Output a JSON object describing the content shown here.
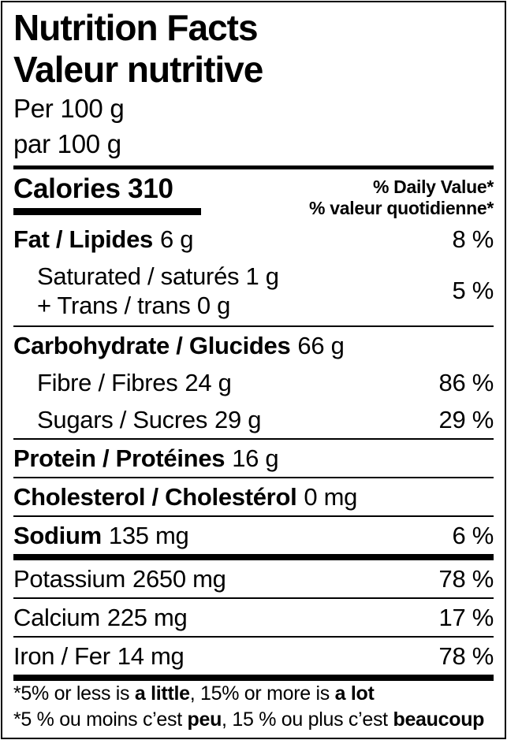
{
  "colors": {
    "ink": "#000000",
    "background": "#ffffff"
  },
  "header": {
    "title_en": "Nutrition Facts",
    "title_fr": "Valeur nutritive",
    "serving_en": "Per 100 g",
    "serving_fr": "par 100 g"
  },
  "calories": {
    "label": "Calories",
    "value": "310"
  },
  "dv_header": {
    "en": "% Daily Value*",
    "fr": "% valeur quotidienne*"
  },
  "nutrients": {
    "fat": {
      "name": "Fat / Lipides",
      "amount": "6 g",
      "dv": "8 %"
    },
    "saturated": {
      "line1": "Saturated / saturés 1 g",
      "line2": "+ Trans / trans 0 g",
      "dv": "5 %"
    },
    "carbohydrate": {
      "name": "Carbohydrate / Glucides",
      "amount": "66 g",
      "dv": ""
    },
    "fibre": {
      "name": "Fibre / Fibres",
      "amount": "24 g",
      "dv": "86 %"
    },
    "sugars": {
      "name": "Sugars / Sucres",
      "amount": "29 g",
      "dv": "29 %"
    },
    "protein": {
      "name": "Protein / Protéines",
      "amount": "16 g",
      "dv": ""
    },
    "cholesterol": {
      "name": "Cholesterol / Cholestérol",
      "amount": "0 mg",
      "dv": ""
    },
    "sodium": {
      "name": "Sodium",
      "amount": "135 mg",
      "dv": "6 %"
    },
    "potassium": {
      "name": "Potassium",
      "amount": "2650 mg",
      "dv": "78 %"
    },
    "calcium": {
      "name": "Calcium",
      "amount": "225 mg",
      "dv": "17 %"
    },
    "iron": {
      "name": "Iron / Fer",
      "amount": "14 mg",
      "dv": "78 %"
    }
  },
  "footnotes": {
    "en": {
      "p1": "*5% or less is ",
      "b1": "a little",
      "p2": ", 15% or more is ",
      "b2": "a lot"
    },
    "fr": {
      "p1": "*5 % ou moins c’est ",
      "b1": "peu",
      "p2": ", 15 % ou plus c’est ",
      "b2": "beaucoup"
    }
  }
}
